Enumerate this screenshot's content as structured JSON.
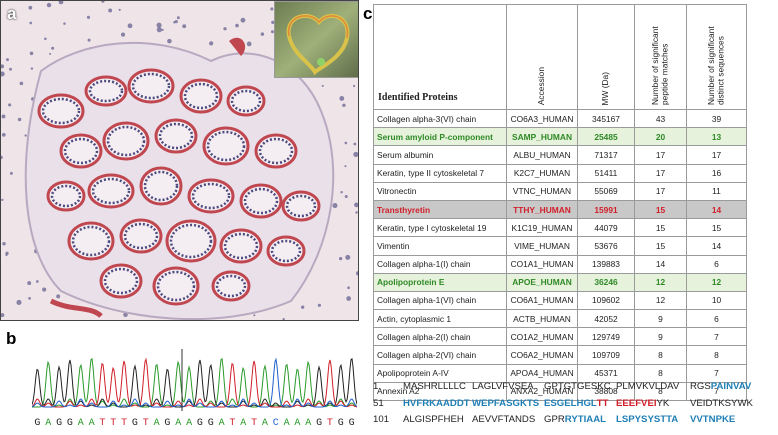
{
  "panels": {
    "a": "a",
    "b": "b",
    "c": "c"
  },
  "colors": {
    "green_row_bg": "#e6f2dc",
    "green_text": "#2f8a26",
    "red_row_bg": "#c8c8c8",
    "red_text": "#d11f2a",
    "seq_highlight": "#1f7fb5",
    "tissue_stain": "#c0474f"
  },
  "table": {
    "headers": [
      "Identified Proteins",
      "Accession",
      "MW (Da)",
      "Number of significant peptide matches",
      "Number of significant distinct sequences"
    ],
    "rows": [
      {
        "protein": "Collagen alpha-3(VI) chain",
        "accession": "CO6A3_HUMAN",
        "mw": "345167",
        "peptides": "43",
        "sequences": "39",
        "hl": ""
      },
      {
        "protein": "Serum amyloid P-component",
        "accession": "SAMP_HUMAN",
        "mw": "25485",
        "peptides": "20",
        "sequences": "13",
        "hl": "green"
      },
      {
        "protein": "Serum albumin",
        "accession": "ALBU_HUMAN",
        "mw": "71317",
        "peptides": "17",
        "sequences": "17",
        "hl": ""
      },
      {
        "protein": "Keratin, type II cytoskeletal 7",
        "accession": "K2C7_HUMAN",
        "mw": "51411",
        "peptides": "17",
        "sequences": "16",
        "hl": ""
      },
      {
        "protein": "Vitronectin",
        "accession": "VTNC_HUMAN",
        "mw": "55069",
        "peptides": "17",
        "sequences": "11",
        "hl": ""
      },
      {
        "protein": "Transthyretin",
        "accession": "TTHY_HUMAN",
        "mw": "15991",
        "peptides": "15",
        "sequences": "14",
        "hl": "red"
      },
      {
        "protein": "Keratin, type I cytoskeletal 19",
        "accession": "K1C19_HUMAN",
        "mw": "44079",
        "peptides": "15",
        "sequences": "15",
        "hl": ""
      },
      {
        "protein": "Vimentin",
        "accession": "VIME_HUMAN",
        "mw": "53676",
        "peptides": "15",
        "sequences": "14",
        "hl": ""
      },
      {
        "protein": "Collagen alpha-1(I) chain",
        "accession": "CO1A1_HUMAN",
        "mw": "139883",
        "peptides": "14",
        "sequences": "6",
        "hl": ""
      },
      {
        "protein": "Apolipoprotein E",
        "accession": "APOE_HUMAN",
        "mw": "36246",
        "peptides": "12",
        "sequences": "12",
        "hl": "green"
      },
      {
        "protein": "Collagen alpha-1(VI) chain",
        "accession": "CO6A1_HUMAN",
        "mw": "109602",
        "peptides": "12",
        "sequences": "10",
        "hl": ""
      },
      {
        "protein": "Actin, cytoplasmic 1",
        "accession": "ACTB_HUMAN",
        "mw": "42052",
        "peptides": "9",
        "sequences": "6",
        "hl": ""
      },
      {
        "protein": "Collagen alpha-2(I) chain",
        "accession": "CO1A2_HUMAN",
        "mw": "129749",
        "peptides": "9",
        "sequences": "7",
        "hl": ""
      },
      {
        "protein": "Collagen alpha-2(VI) chain",
        "accession": "CO6A2_HUMAN",
        "mw": "109709",
        "peptides": "8",
        "sequences": "8",
        "hl": ""
      },
      {
        "protein": "Apolipoprotein A-IV",
        "accession": "APOA4_HUMAN",
        "mw": "45371",
        "peptides": "8",
        "sequences": "7",
        "hl": ""
      },
      {
        "protein": "Annexin A2",
        "accession": "ANXA2_HUMAN",
        "mw": "38808",
        "peptides": "8",
        "sequences": "7",
        "hl": ""
      }
    ]
  },
  "sequence": {
    "lines": [
      {
        "num": "1",
        "blocks": [
          [
            {
              "t": "MASHRLLLLC",
              "c": ""
            }
          ],
          [
            {
              "t": "LAGLVFVSEA",
              "c": ""
            }
          ],
          [
            {
              "t": "GPTGTGESKC",
              "c": ""
            }
          ],
          [
            {
              "t": "PLMVKVLDAV",
              "c": ""
            }
          ],
          [
            {
              "t": "RGS",
              "c": ""
            },
            {
              "t": "PAINVAV",
              "c": "b"
            }
          ]
        ]
      },
      {
        "num": "51",
        "blocks": [
          [
            {
              "t": "HVFRKAADDT",
              "c": "b"
            }
          ],
          [
            {
              "t": "WEPFASGKTS",
              "c": "b"
            }
          ],
          [
            {
              "t": "ESGELHGL",
              "c": "b"
            },
            {
              "t": "TT",
              "c": "r"
            }
          ],
          [
            {
              "t": "EEEFVEI",
              "c": "r"
            },
            {
              "t": "YK",
              "c": ""
            }
          ],
          [
            {
              "t": "VEIDTKSYWK",
              "c": ""
            }
          ]
        ]
      },
      {
        "num": "101",
        "blocks": [
          [
            {
              "t": "ALGISPFHEH",
              "c": ""
            }
          ],
          [
            {
              "t": "AEVVFTANDS",
              "c": ""
            }
          ],
          [
            {
              "t": "GPR",
              "c": ""
            },
            {
              "t": "RYTIAAL",
              "c": "b"
            }
          ],
          [
            {
              "t": "LSPYSYSTTA",
              "c": "b"
            }
          ],
          [
            {
              "t": "VVTNPKE",
              "c": "b"
            }
          ]
        ]
      }
    ]
  },
  "chromatogram": {
    "bases": "GAGGAATTTGTAGAAGGATATACAAAGTGG",
    "base_colors": {
      "A": "#2a9a2a",
      "G": "#222222",
      "T": "#d11f2a",
      "C": "#1f5fcc"
    }
  }
}
